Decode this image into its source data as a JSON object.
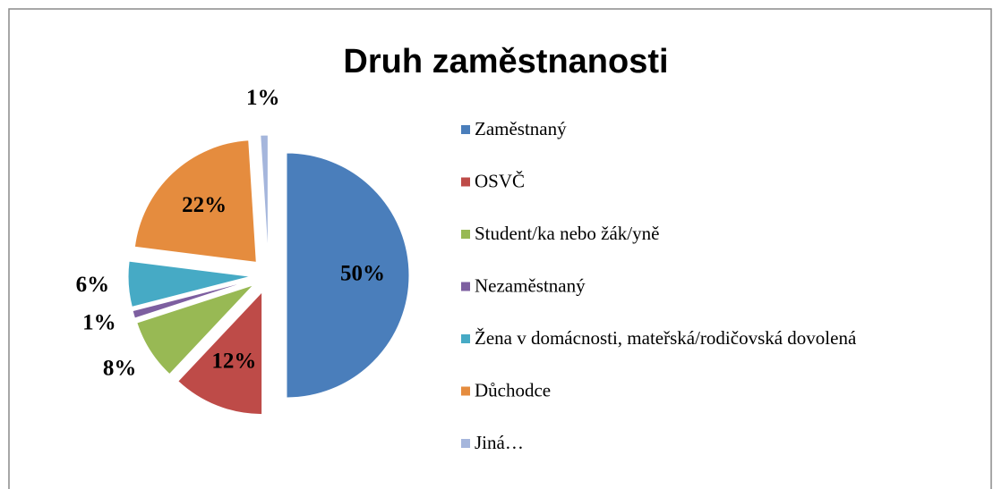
{
  "chart_data": {
    "type": "pie",
    "title": "Druh zaměstnanosti",
    "categories": [
      "Zaměstnaný",
      "OSVČ",
      "Student/ka nebo žák/yně",
      "Nezaměstnaný",
      "Žena v domácnosti, mateřská/rodičovská dovolená",
      "Důchodce",
      "Jiná…"
    ],
    "values": [
      50,
      12,
      8,
      1,
      6,
      22,
      1
    ],
    "value_labels": [
      "50%",
      "12%",
      "8%",
      "1%",
      "6%",
      "22%",
      "1%"
    ],
    "colors": [
      "#4a7ebb",
      "#be4b48",
      "#98b954",
      "#7d5fa0",
      "#46aac5",
      "#e58c3e",
      "#a5b6dc"
    ],
    "legend": "right"
  }
}
